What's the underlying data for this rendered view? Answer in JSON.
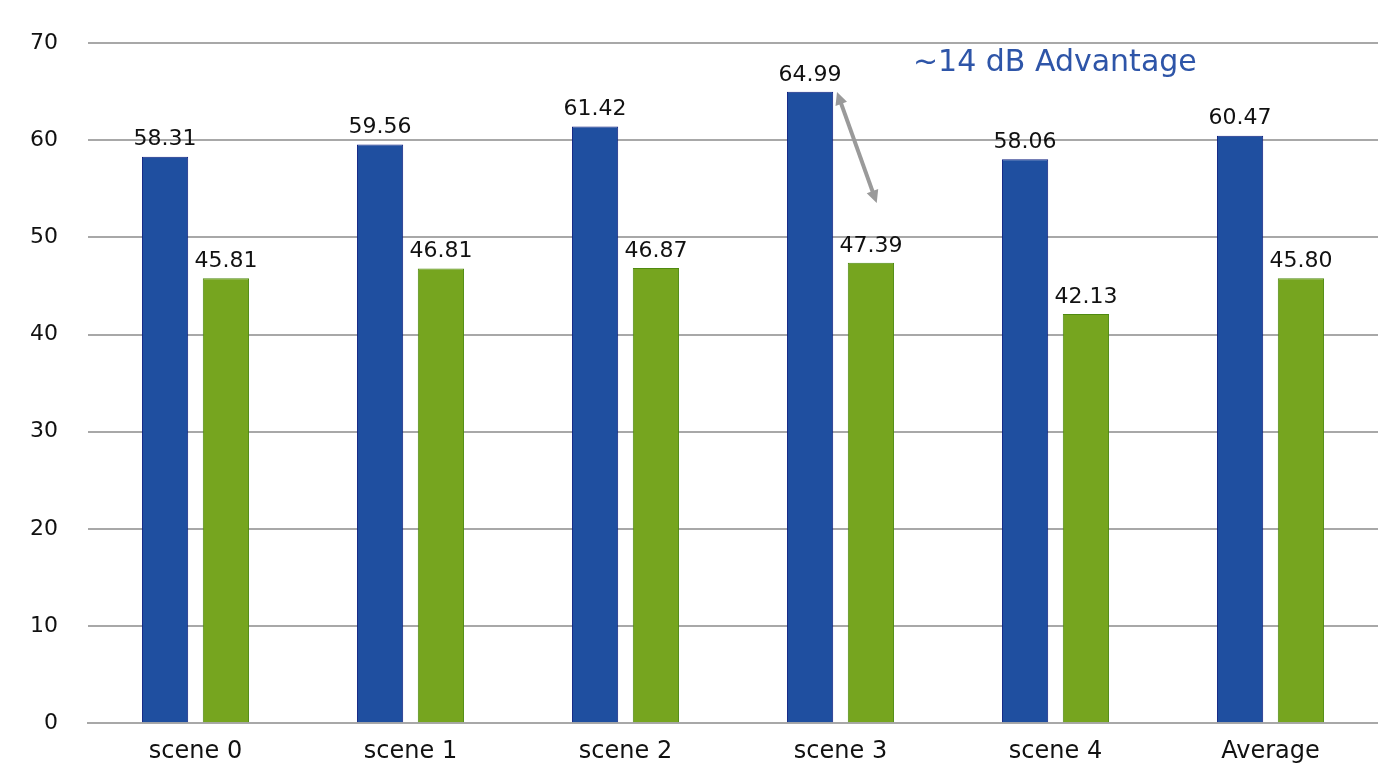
{
  "chart_data": {
    "type": "bar",
    "categories": [
      "scene 0",
      "scene 1",
      "scene 2",
      "scene 3",
      "scene 4",
      "Average"
    ],
    "series": [
      {
        "color": "#1f4fa0",
        "values": [
          58.31,
          59.56,
          61.42,
          64.99,
          58.06,
          60.47
        ],
        "value_labels": [
          "58.31",
          "59.56",
          "61.42",
          "64.99",
          "58.06",
          "60.47"
        ]
      },
      {
        "color": "#76a51f",
        "values": [
          45.81,
          46.81,
          46.87,
          47.39,
          42.13,
          45.8
        ],
        "value_labels": [
          "45.81",
          "46.81",
          "46.87",
          "47.39",
          "42.13",
          "45.80"
        ]
      }
    ],
    "ylim": [
      0,
      70
    ],
    "yticks": [
      0,
      10,
      20,
      30,
      40,
      50,
      60,
      70
    ],
    "grid": "y",
    "legend": false,
    "annotations": [
      "~14 dB Advantage"
    ]
  }
}
